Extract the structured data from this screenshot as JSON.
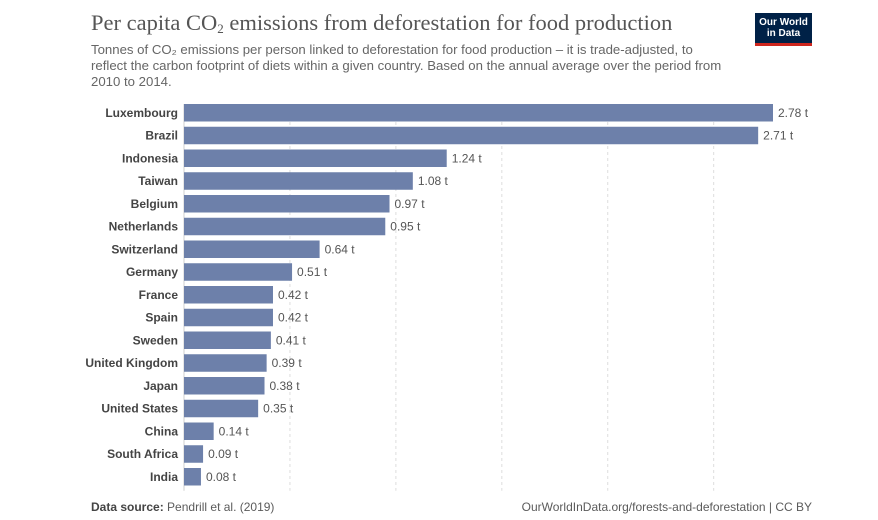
{
  "header": {
    "title_main": "Per capita CO",
    "title_sub": "2",
    "title_rest": " emissions from deforestation for food production",
    "subtitle": "Tonnes of CO₂ emissions per person linked to deforestation for food production – it is trade-adjusted, to reflect the carbon footprint of diets within a given country. Based on the annual average over the period from 2010 to 2014.",
    "logo_line1": "Our World",
    "logo_line2": "in Data"
  },
  "footer": {
    "source_label": "Data source:",
    "source_value": " Pendrill et al. (2019)",
    "url": "OurWorldInData.org/forests-and-deforestation | CC BY"
  },
  "chart_data": {
    "type": "bar",
    "orientation": "horizontal",
    "categories": [
      "Luxembourg",
      "Brazil",
      "Indonesia",
      "Taiwan",
      "Belgium",
      "Netherlands",
      "Switzerland",
      "Germany",
      "France",
      "Spain",
      "Sweden",
      "United Kingdom",
      "Japan",
      "United States",
      "China",
      "South Africa",
      "India"
    ],
    "values": [
      2.78,
      2.71,
      1.24,
      1.08,
      0.97,
      0.95,
      0.64,
      0.51,
      0.42,
      0.42,
      0.41,
      0.39,
      0.38,
      0.35,
      0.14,
      0.09,
      0.08
    ],
    "value_labels": [
      "2.78 t",
      "2.71 t",
      "1.24 t",
      "1.08 t",
      "0.97 t",
      "0.95 t",
      "0.64 t",
      "0.51 t",
      "0.42 t",
      "0.42 t",
      "0.41 t",
      "0.39 t",
      "0.38 t",
      "0.35 t",
      "0.14 t",
      "0.09 t",
      "0.08 t"
    ],
    "unit": "t",
    "xlim": [
      0,
      2.78
    ],
    "gridlines": [
      0,
      0.5,
      1,
      1.5,
      2,
      2.5
    ],
    "bar_color": "#6d80aa",
    "grid": true
  }
}
